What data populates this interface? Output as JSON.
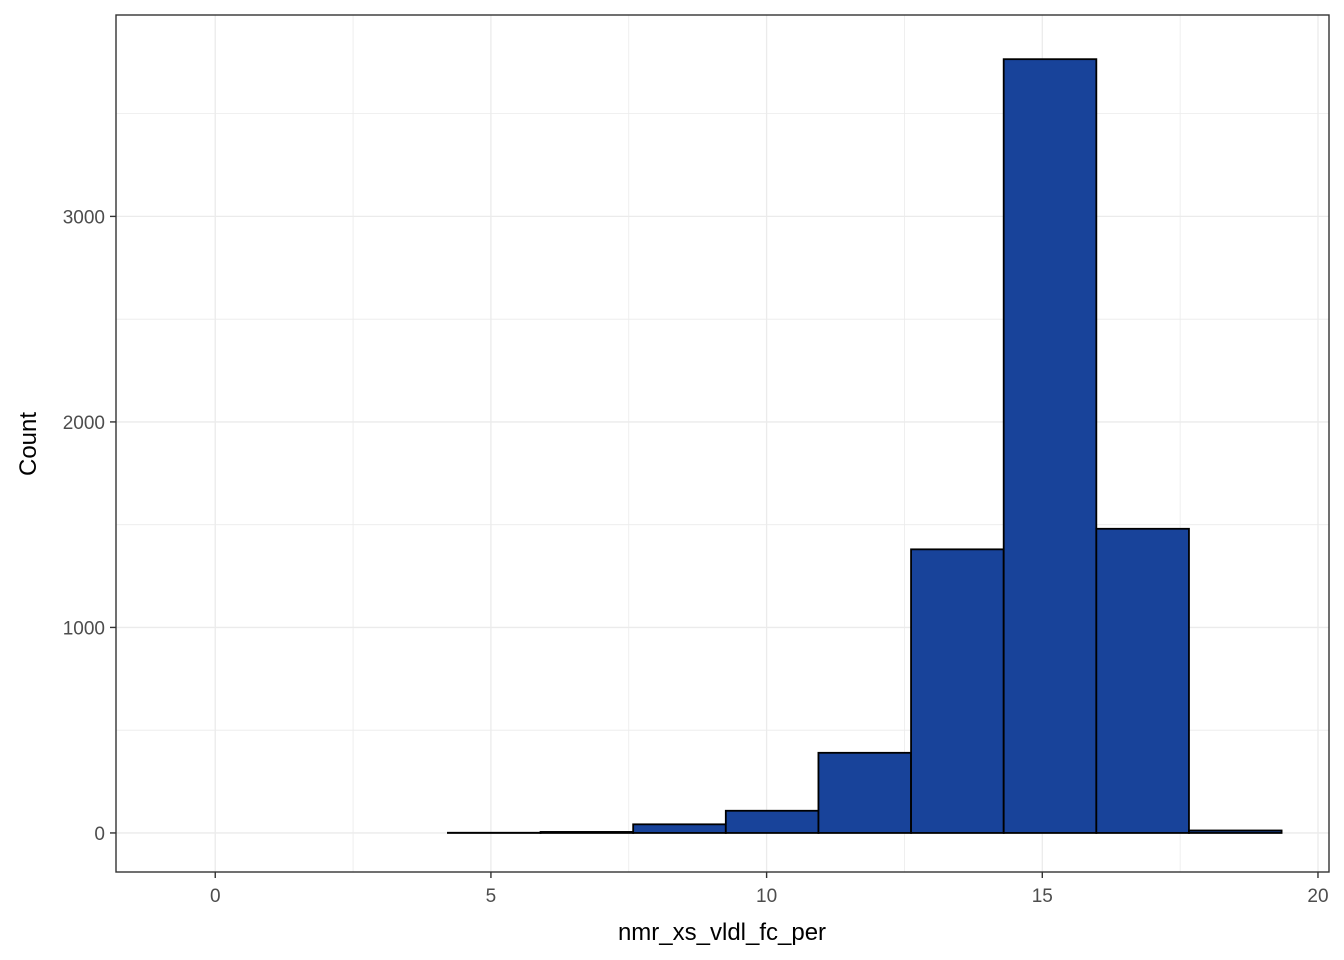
{
  "chart_data": {
    "type": "bar",
    "subtype": "histogram",
    "title": "",
    "xlabel": "nmr_xs_vldl_fc_per",
    "ylabel": "Count",
    "xlim": [
      -1.8,
      20.2
    ],
    "ylim": [
      -190,
      3980
    ],
    "x_ticks": [
      0,
      5,
      10,
      15,
      20
    ],
    "y_ticks": [
      0,
      1000,
      2000,
      3000
    ],
    "grid": true,
    "legend": "none",
    "bar_fill": "#18439A",
    "bar_stroke": "#000000",
    "bins": [
      {
        "x0": -0.82,
        "x1": 0.86,
        "count": 0
      },
      {
        "x0": 0.86,
        "x1": 2.54,
        "count": 0
      },
      {
        "x0": 2.54,
        "x1": 4.22,
        "count": 0
      },
      {
        "x0": 4.22,
        "x1": 5.9,
        "count": 1
      },
      {
        "x0": 5.9,
        "x1": 7.58,
        "count": 5
      },
      {
        "x0": 7.58,
        "x1": 9.26,
        "count": 42
      },
      {
        "x0": 9.26,
        "x1": 10.94,
        "count": 108
      },
      {
        "x0": 10.94,
        "x1": 12.62,
        "count": 390
      },
      {
        "x0": 12.62,
        "x1": 14.3,
        "count": 1380
      },
      {
        "x0": 14.3,
        "x1": 15.98,
        "count": 3765
      },
      {
        "x0": 15.98,
        "x1": 17.66,
        "count": 1480
      },
      {
        "x0": 17.66,
        "x1": 19.34,
        "count": 12
      }
    ]
  }
}
